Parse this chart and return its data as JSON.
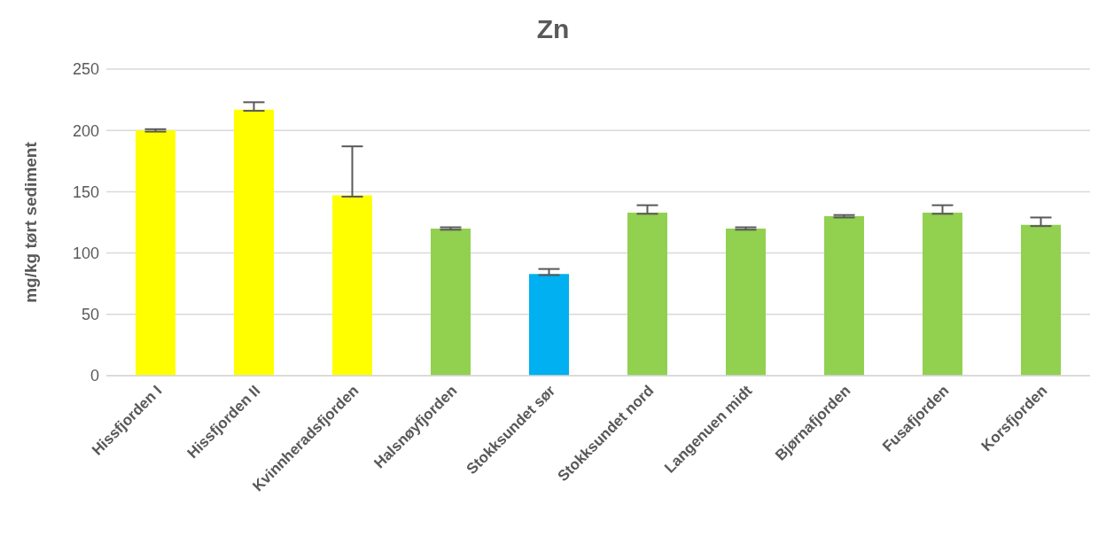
{
  "chart_data": {
    "type": "bar",
    "title": "Zn",
    "ylabel": "mg/kg tørt sediment",
    "categories": [
      "Hissfjorden I",
      "Hissfjorden II",
      "Kvinnheradsfjorden",
      "Halsnøyfjorden",
      "Stokksundet sør",
      "Stokksundet nord",
      "Langenuen midt",
      "Bjørnafjorden",
      "Fusafjorden",
      "Korsfjorden"
    ],
    "values": [
      200,
      217,
      147,
      120,
      83,
      133,
      120,
      130,
      133,
      123
    ],
    "colors": [
      "#ffff00",
      "#ffff00",
      "#ffff00",
      "#92d050",
      "#00b0f0",
      "#92d050",
      "#92d050",
      "#92d050",
      "#92d050",
      "#92d050"
    ],
    "errors": [
      1,
      [
        216,
        223
      ],
      [
        146,
        187
      ],
      1,
      [
        82,
        87
      ],
      [
        132,
        139
      ],
      1,
      1,
      [
        132,
        139
      ],
      [
        122,
        129
      ]
    ],
    "ylim": [
      0,
      250
    ],
    "yticks": [
      0,
      50,
      100,
      150,
      200,
      250
    ],
    "grid": "y"
  }
}
